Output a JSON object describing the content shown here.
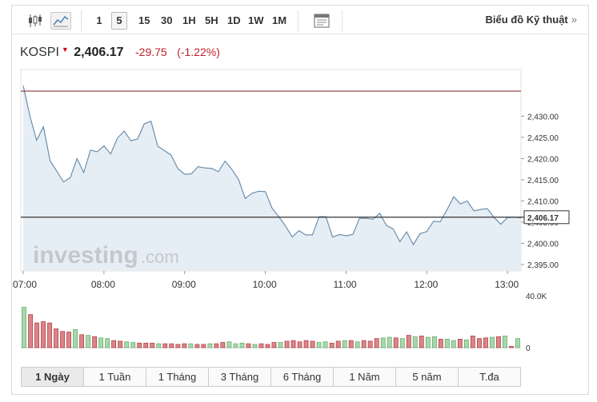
{
  "toolbar": {
    "chart_type_icons": [
      "candlestick-icon",
      "area-chart-icon"
    ],
    "intervals": [
      {
        "label": "1",
        "selected": false
      },
      {
        "label": "5",
        "selected": true
      },
      {
        "label": "15",
        "selected": false
      },
      {
        "label": "30",
        "selected": false
      },
      {
        "label": "1H",
        "selected": false
      },
      {
        "label": "5H",
        "selected": false
      },
      {
        "label": "1D",
        "selected": false
      },
      {
        "label": "1W",
        "selected": false
      },
      {
        "label": "1M",
        "selected": false
      }
    ],
    "advanced_link": "Biểu đồ Kỹ thuật",
    "advanced_chevron": "»"
  },
  "quote": {
    "name": "KOSPI",
    "arrow": "▼",
    "price": "2,406.17",
    "change": "-29.75",
    "change_pct": "(-1.22%)"
  },
  "watermark": {
    "brand": "investing",
    "domain": ".com"
  },
  "colors": {
    "price_line": "#6b8fae",
    "area_fill": "#e6eef5",
    "prev_close_line": "#7d1f1f",
    "current_line": "#333333",
    "vol_up": "#a9d7ad",
    "vol_up_stroke": "#5aa85e",
    "vol_down": "#d9868a",
    "vol_down_stroke": "#b0333a"
  },
  "chart_data": [
    {
      "type": "area",
      "y_ticks": [
        "2,395.00",
        "2,400.00",
        "2,405.00",
        "2,410.00",
        "2,415.00",
        "2,420.00",
        "2,425.00",
        "2,430.00"
      ],
      "ylim": [
        2393.5,
        2441.0
      ],
      "x_ticks": [
        "07:00",
        "08:00",
        "09:00",
        "10:00",
        "11:00",
        "12:00",
        "13:00"
      ],
      "prev_close": 2435.92,
      "current": 2406.17,
      "current_label": "2,406.17",
      "series": [
        {
          "values": [
            2437.2,
            2430.0,
            2424.3,
            2427.5,
            2419.5,
            2417.0,
            2414.5,
            2415.5,
            2420.0,
            2416.7,
            2422.0,
            2421.6,
            2423.0,
            2421.1,
            2424.8,
            2426.5,
            2424.2,
            2424.6,
            2428.2,
            2428.8,
            2422.9,
            2421.9,
            2420.8,
            2417.6,
            2416.3,
            2416.4,
            2418.1,
            2417.8,
            2417.7,
            2416.9,
            2419.4,
            2417.5,
            2415.1,
            2410.6,
            2411.8,
            2412.3,
            2412.2,
            2408.3,
            2406.3,
            2404.1,
            2401.5,
            2403.0,
            2402.0,
            2402.0,
            2406.3,
            2406.3,
            2401.5,
            2402.1,
            2401.8,
            2402.1,
            2405.9,
            2405.9,
            2405.7,
            2407.1,
            2404.2,
            2403.4,
            2400.4,
            2402.7,
            2399.7,
            2402.3,
            2402.8,
            2405.2,
            2405.1,
            2407.9,
            2411.0,
            2409.3,
            2410.0,
            2407.7,
            2408.0,
            2408.2,
            2406.1,
            2404.5,
            2406.1,
            2406.2,
            2406.0
          ]
        }
      ]
    },
    {
      "type": "bar",
      "y_ticks": [
        "0",
        "40.0K"
      ],
      "ylim": [
        0,
        40000
      ],
      "values": [
        31000,
        25500,
        19000,
        20000,
        19000,
        14500,
        12500,
        12000,
        14000,
        10000,
        9500,
        8500,
        7500,
        7000,
        5500,
        5000,
        4500,
        4000,
        3500,
        3500,
        3500,
        3000,
        3000,
        3000,
        2500,
        3000,
        3000,
        2500,
        2500,
        3000,
        3000,
        4000,
        4500,
        3000,
        3500,
        3000,
        2500,
        3000,
        2500,
        4000,
        4000,
        5000,
        5500,
        4500,
        5500,
        5000,
        4000,
        4500,
        3500,
        5000,
        5500,
        5500,
        4500,
        5500,
        5000,
        7000,
        7500,
        8000,
        7500,
        7000,
        9500,
        8500,
        9000,
        8000,
        8500,
        6500,
        6500,
        5500,
        6500,
        6000,
        9000,
        7000,
        7500,
        8000,
        8500,
        9000,
        1000,
        7000
      ],
      "up": [
        true,
        false,
        false,
        false,
        false,
        false,
        false,
        false,
        true,
        false,
        true,
        false,
        true,
        true,
        false,
        false,
        true,
        true,
        false,
        false,
        false,
        true,
        false,
        false,
        false,
        false,
        true,
        false,
        false,
        true,
        false,
        false,
        true,
        true,
        true,
        false,
        true,
        false,
        false,
        false,
        true,
        false,
        false,
        false,
        false,
        false,
        true,
        true,
        false,
        false,
        true,
        false,
        true,
        false,
        false,
        false,
        true,
        true,
        false,
        true,
        false,
        true,
        false,
        true,
        true,
        false,
        true,
        true,
        false,
        true,
        false,
        false,
        false,
        true,
        false,
        true,
        false,
        true
      ]
    }
  ],
  "periods": [
    {
      "label": "1 Ngày",
      "selected": true
    },
    {
      "label": "1 Tuần",
      "selected": false
    },
    {
      "label": "1 Tháng",
      "selected": false
    },
    {
      "label": "3 Tháng",
      "selected": false
    },
    {
      "label": "6 Tháng",
      "selected": false
    },
    {
      "label": "1 Năm",
      "selected": false
    },
    {
      "label": "5 năm",
      "selected": false
    },
    {
      "label": "T.đa",
      "selected": false
    }
  ]
}
